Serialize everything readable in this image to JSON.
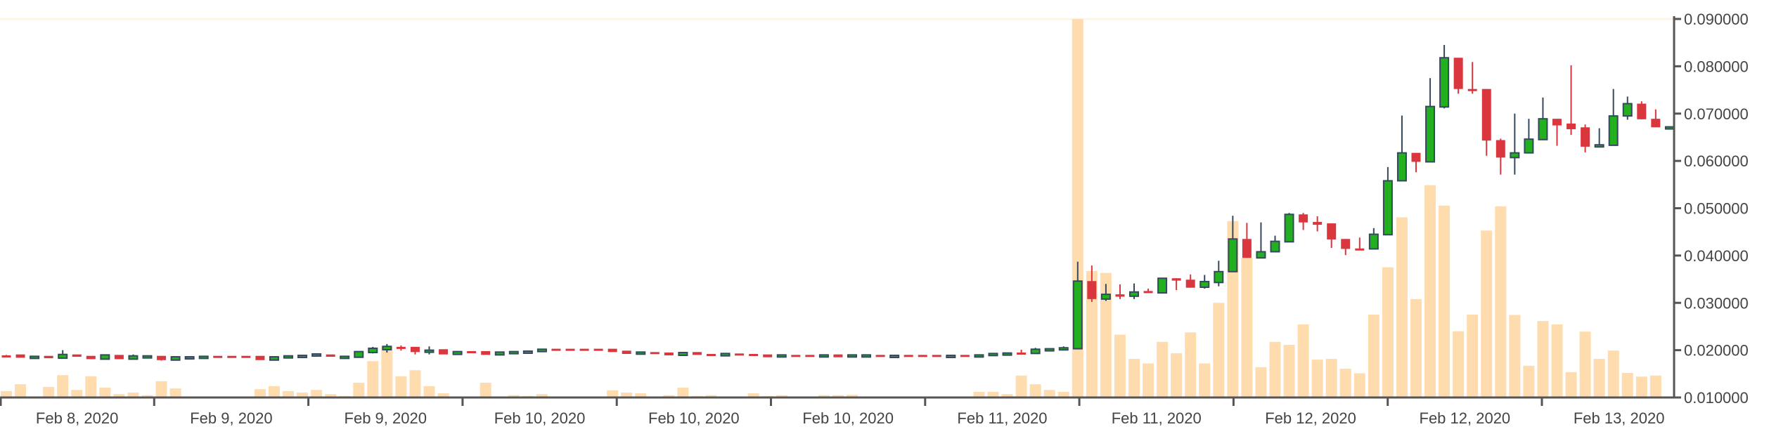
{
  "chart_data": {
    "type": "candlestick",
    "title": "",
    "xlabel": "",
    "ylabel": "",
    "ylim": [
      0.01,
      0.09
    ],
    "y_ticks": [
      "0.010000",
      "0.020000",
      "0.030000",
      "0.040000",
      "0.050000",
      "0.060000",
      "0.070000",
      "0.080000",
      "0.090000"
    ],
    "y_axis_position": "right",
    "x_tick_labels": [
      "Feb 8, 2020",
      "Feb 9, 2020",
      "Feb 9, 2020",
      "Feb 10, 2020",
      "Feb 10, 2020",
      "Feb 10, 2020",
      "Feb 11, 2020",
      "Feb 11, 2020",
      "Feb 12, 2020",
      "Feb 12, 2020",
      "Feb 13, 2020"
    ],
    "grid": false,
    "colors": {
      "up": "#22b01e",
      "up_border": "#34495e",
      "down": "#d9363e",
      "volume": "#ffdcae",
      "axis": "#555555"
    },
    "candle_fields": [
      "open",
      "high",
      "low",
      "close"
    ],
    "candles": [
      [
        0.0189,
        0.019,
        0.0188,
        0.0188
      ],
      [
        0.0191,
        0.0191,
        0.0184,
        0.0184
      ],
      [
        0.0186,
        0.0187,
        0.0186,
        0.0187
      ],
      [
        0.0188,
        0.0188,
        0.0183,
        0.0183
      ],
      [
        0.0183,
        0.02,
        0.0183,
        0.0191
      ],
      [
        0.0191,
        0.0191,
        0.0186,
        0.0186
      ],
      [
        0.0188,
        0.0188,
        0.0181,
        0.0181
      ],
      [
        0.0181,
        0.019,
        0.0181,
        0.019
      ],
      [
        0.019,
        0.019,
        0.0181,
        0.0181
      ],
      [
        0.0181,
        0.0191,
        0.0181,
        0.0188
      ],
      [
        0.0187,
        0.0188,
        0.0187,
        0.0188
      ],
      [
        0.0188,
        0.0188,
        0.0178,
        0.0179
      ],
      [
        0.0179,
        0.0186,
        0.0179,
        0.0186
      ],
      [
        0.0185,
        0.0186,
        0.0185,
        0.0186
      ],
      [
        0.0186,
        0.0187,
        0.0186,
        0.0187
      ],
      [
        0.0188,
        0.0188,
        0.0187,
        0.0187
      ],
      [
        0.0188,
        0.0188,
        0.0187,
        0.0187
      ],
      [
        0.0188,
        0.0188,
        0.0187,
        0.0187
      ],
      [
        0.0188,
        0.0188,
        0.0179,
        0.0179
      ],
      [
        0.0179,
        0.0186,
        0.0179,
        0.0186
      ],
      [
        0.0187,
        0.0188,
        0.0187,
        0.0188
      ],
      [
        0.0188,
        0.0189,
        0.0188,
        0.0189
      ],
      [
        0.0191,
        0.0192,
        0.0191,
        0.0192
      ],
      [
        0.0191,
        0.0191,
        0.0186,
        0.0186
      ],
      [
        0.0186,
        0.0187,
        0.0186,
        0.0187
      ],
      [
        0.0185,
        0.0197,
        0.0185,
        0.0197
      ],
      [
        0.0195,
        0.0207,
        0.0193,
        0.0204
      ],
      [
        0.0201,
        0.0213,
        0.0195,
        0.0208
      ],
      [
        0.0207,
        0.021,
        0.0199,
        0.0204
      ],
      [
        0.0207,
        0.0207,
        0.0191,
        0.0196
      ],
      [
        0.0199,
        0.0208,
        0.0191,
        0.02
      ],
      [
        0.0202,
        0.0202,
        0.0191,
        0.0191
      ],
      [
        0.0191,
        0.0197,
        0.0191,
        0.0197
      ],
      [
        0.0198,
        0.0198,
        0.0197,
        0.0197
      ],
      [
        0.0198,
        0.0198,
        0.019,
        0.019
      ],
      [
        0.019,
        0.0196,
        0.019,
        0.0196
      ],
      [
        0.0196,
        0.0197,
        0.0196,
        0.0197
      ],
      [
        0.0197,
        0.0198,
        0.0197,
        0.0198
      ],
      [
        0.0197,
        0.0202,
        0.0197,
        0.0202
      ],
      [
        0.0203,
        0.0203,
        0.0202,
        0.0202
      ],
      [
        0.0203,
        0.0203,
        0.0202,
        0.0202
      ],
      [
        0.0203,
        0.0203,
        0.0202,
        0.0202
      ],
      [
        0.0203,
        0.0203,
        0.0202,
        0.0202
      ],
      [
        0.0203,
        0.0203,
        0.0196,
        0.0196
      ],
      [
        0.0199,
        0.0199,
        0.0192,
        0.0192
      ],
      [
        0.0193,
        0.0196,
        0.0193,
        0.0196
      ],
      [
        0.0196,
        0.0196,
        0.0195,
        0.0195
      ],
      [
        0.0195,
        0.0195,
        0.0189,
        0.0189
      ],
      [
        0.0189,
        0.0195,
        0.0189,
        0.0195
      ],
      [
        0.0196,
        0.0196,
        0.019,
        0.019
      ],
      [
        0.0192,
        0.0192,
        0.0191,
        0.0191
      ],
      [
        0.0188,
        0.0193,
        0.0188,
        0.0193
      ],
      [
        0.0193,
        0.0193,
        0.0192,
        0.0192
      ],
      [
        0.0192,
        0.0192,
        0.0191,
        0.0191
      ],
      [
        0.0191,
        0.0191,
        0.0185,
        0.0185
      ],
      [
        0.0187,
        0.019,
        0.0187,
        0.019
      ],
      [
        0.019,
        0.019,
        0.0189,
        0.0189
      ],
      [
        0.019,
        0.019,
        0.0187,
        0.0187
      ],
      [
        0.0189,
        0.019,
        0.0189,
        0.019
      ],
      [
        0.0191,
        0.0191,
        0.0185,
        0.0185
      ],
      [
        0.0186,
        0.019,
        0.0186,
        0.019
      ],
      [
        0.0189,
        0.019,
        0.0189,
        0.019
      ],
      [
        0.019,
        0.019,
        0.0189,
        0.0189
      ],
      [
        0.0188,
        0.0189,
        0.0188,
        0.0189
      ],
      [
        0.019,
        0.019,
        0.0189,
        0.0189
      ],
      [
        0.019,
        0.019,
        0.0189,
        0.0189
      ],
      [
        0.019,
        0.019,
        0.0189,
        0.0189
      ],
      [
        0.0188,
        0.0189,
        0.0188,
        0.0189
      ],
      [
        0.019,
        0.019,
        0.0189,
        0.0189
      ],
      [
        0.0189,
        0.019,
        0.0189,
        0.019
      ],
      [
        0.019,
        0.0193,
        0.019,
        0.0193
      ],
      [
        0.0193,
        0.0194,
        0.0193,
        0.0194
      ],
      [
        0.0195,
        0.0201,
        0.0194,
        0.0194
      ],
      [
        0.0193,
        0.0205,
        0.0193,
        0.0202
      ],
      [
        0.0202,
        0.0204,
        0.0202,
        0.0203
      ],
      [
        0.0204,
        0.0208,
        0.0204,
        0.0205
      ],
      [
        0.0203,
        0.0387,
        0.0203,
        0.0346
      ],
      [
        0.0346,
        0.0379,
        0.0302,
        0.0308
      ],
      [
        0.0308,
        0.034,
        0.0304,
        0.0318
      ],
      [
        0.0318,
        0.0339,
        0.0308,
        0.0313
      ],
      [
        0.0314,
        0.0341,
        0.0308,
        0.0323
      ],
      [
        0.0325,
        0.033,
        0.0322,
        0.0322
      ],
      [
        0.0321,
        0.0352,
        0.0321,
        0.0352
      ],
      [
        0.0352,
        0.0352,
        0.0327,
        0.0347
      ],
      [
        0.0349,
        0.036,
        0.0332,
        0.0332
      ],
      [
        0.0333,
        0.0359,
        0.033,
        0.0345
      ],
      [
        0.0343,
        0.0389,
        0.0335,
        0.0366
      ],
      [
        0.0366,
        0.0484,
        0.0366,
        0.0435
      ],
      [
        0.0435,
        0.0469,
        0.0395,
        0.0395
      ],
      [
        0.0395,
        0.047,
        0.0395,
        0.0408
      ],
      [
        0.0408,
        0.0442,
        0.0408,
        0.043
      ],
      [
        0.0429,
        0.049,
        0.0429,
        0.0487
      ],
      [
        0.0487,
        0.049,
        0.0454,
        0.047
      ],
      [
        0.0471,
        0.0483,
        0.0451,
        0.0465
      ],
      [
        0.0468,
        0.0468,
        0.0416,
        0.0434
      ],
      [
        0.0435,
        0.0435,
        0.0401,
        0.0414
      ],
      [
        0.0415,
        0.0438,
        0.0411,
        0.0411
      ],
      [
        0.0414,
        0.0458,
        0.0414,
        0.0445
      ],
      [
        0.0444,
        0.0587,
        0.0444,
        0.0558
      ],
      [
        0.0558,
        0.0696,
        0.0558,
        0.0617
      ],
      [
        0.0617,
        0.0617,
        0.0576,
        0.0598
      ],
      [
        0.0598,
        0.0775,
        0.0598,
        0.0715
      ],
      [
        0.0714,
        0.0845,
        0.0711,
        0.0818
      ],
      [
        0.0818,
        0.0818,
        0.0742,
        0.0752
      ],
      [
        0.0752,
        0.0809,
        0.0742,
        0.0749
      ],
      [
        0.0752,
        0.0752,
        0.0611,
        0.0643
      ],
      [
        0.0644,
        0.0647,
        0.0571,
        0.0607
      ],
      [
        0.0607,
        0.07,
        0.0571,
        0.0617
      ],
      [
        0.0617,
        0.0689,
        0.0617,
        0.0646
      ],
      [
        0.0645,
        0.0734,
        0.0645,
        0.0689
      ],
      [
        0.0689,
        0.0689,
        0.0632,
        0.0675
      ],
      [
        0.0679,
        0.0802,
        0.0655,
        0.0667
      ],
      [
        0.0671,
        0.0677,
        0.0618,
        0.063
      ],
      [
        0.063,
        0.0669,
        0.063,
        0.0634
      ],
      [
        0.0633,
        0.0752,
        0.0633,
        0.0695
      ],
      [
        0.0695,
        0.0736,
        0.0687,
        0.0721
      ],
      [
        0.0721,
        0.0726,
        0.0688,
        0.0688
      ],
      [
        0.0689,
        0.0709,
        0.0671,
        0.0671
      ],
      [
        0.0671,
        0.0672,
        0.0671,
        0.0672
      ]
    ],
    "volume_relative_percent": [
      1.7,
      3.5,
      0.2,
      2.8,
      5.9,
      2.0,
      5.6,
      2.6,
      0.9,
      1.3,
      0.6,
      4.3,
      2.4,
      0.2,
      0.2,
      0,
      0,
      0,
      2.2,
      3.0,
      1.7,
      1.3,
      2.0,
      0.9,
      0.4,
      3.9,
      9.6,
      13.4,
      5.6,
      7.2,
      3.0,
      1.1,
      0,
      0.2,
      3.9,
      0.2,
      0.6,
      0.4,
      0.9,
      0,
      0,
      0,
      0,
      1.9,
      1.3,
      1.1,
      0.2,
      0.6,
      2.6,
      0.4,
      0.6,
      0.2,
      0.2,
      1.1,
      0.4,
      0.6,
      0,
      0.2,
      0.6,
      0.6,
      0.7,
      0.2,
      0.2,
      0,
      0,
      0,
      0,
      0,
      0,
      1.5,
      1.5,
      0.9,
      5.8,
      3.5,
      2.0,
      1.5,
      100,
      33.4,
      32.9,
      16.6,
      10.2,
      9.0,
      14.7,
      11.7,
      17.2,
      9.0,
      25.0,
      46.6,
      36.9,
      8.0,
      14.7,
      13.9,
      19.3,
      10.0,
      10.2,
      7.6,
      6.4,
      21.9,
      34.4,
      47.6,
      26.0,
      56.1,
      50.7,
      17.5,
      21.9,
      44.1,
      50.5,
      21.8,
      8.4,
      20.2,
      19.3,
      6.7,
      17.4,
      10.2,
      12.4,
      6.5,
      5.5,
      5.8,
      0
    ]
  }
}
